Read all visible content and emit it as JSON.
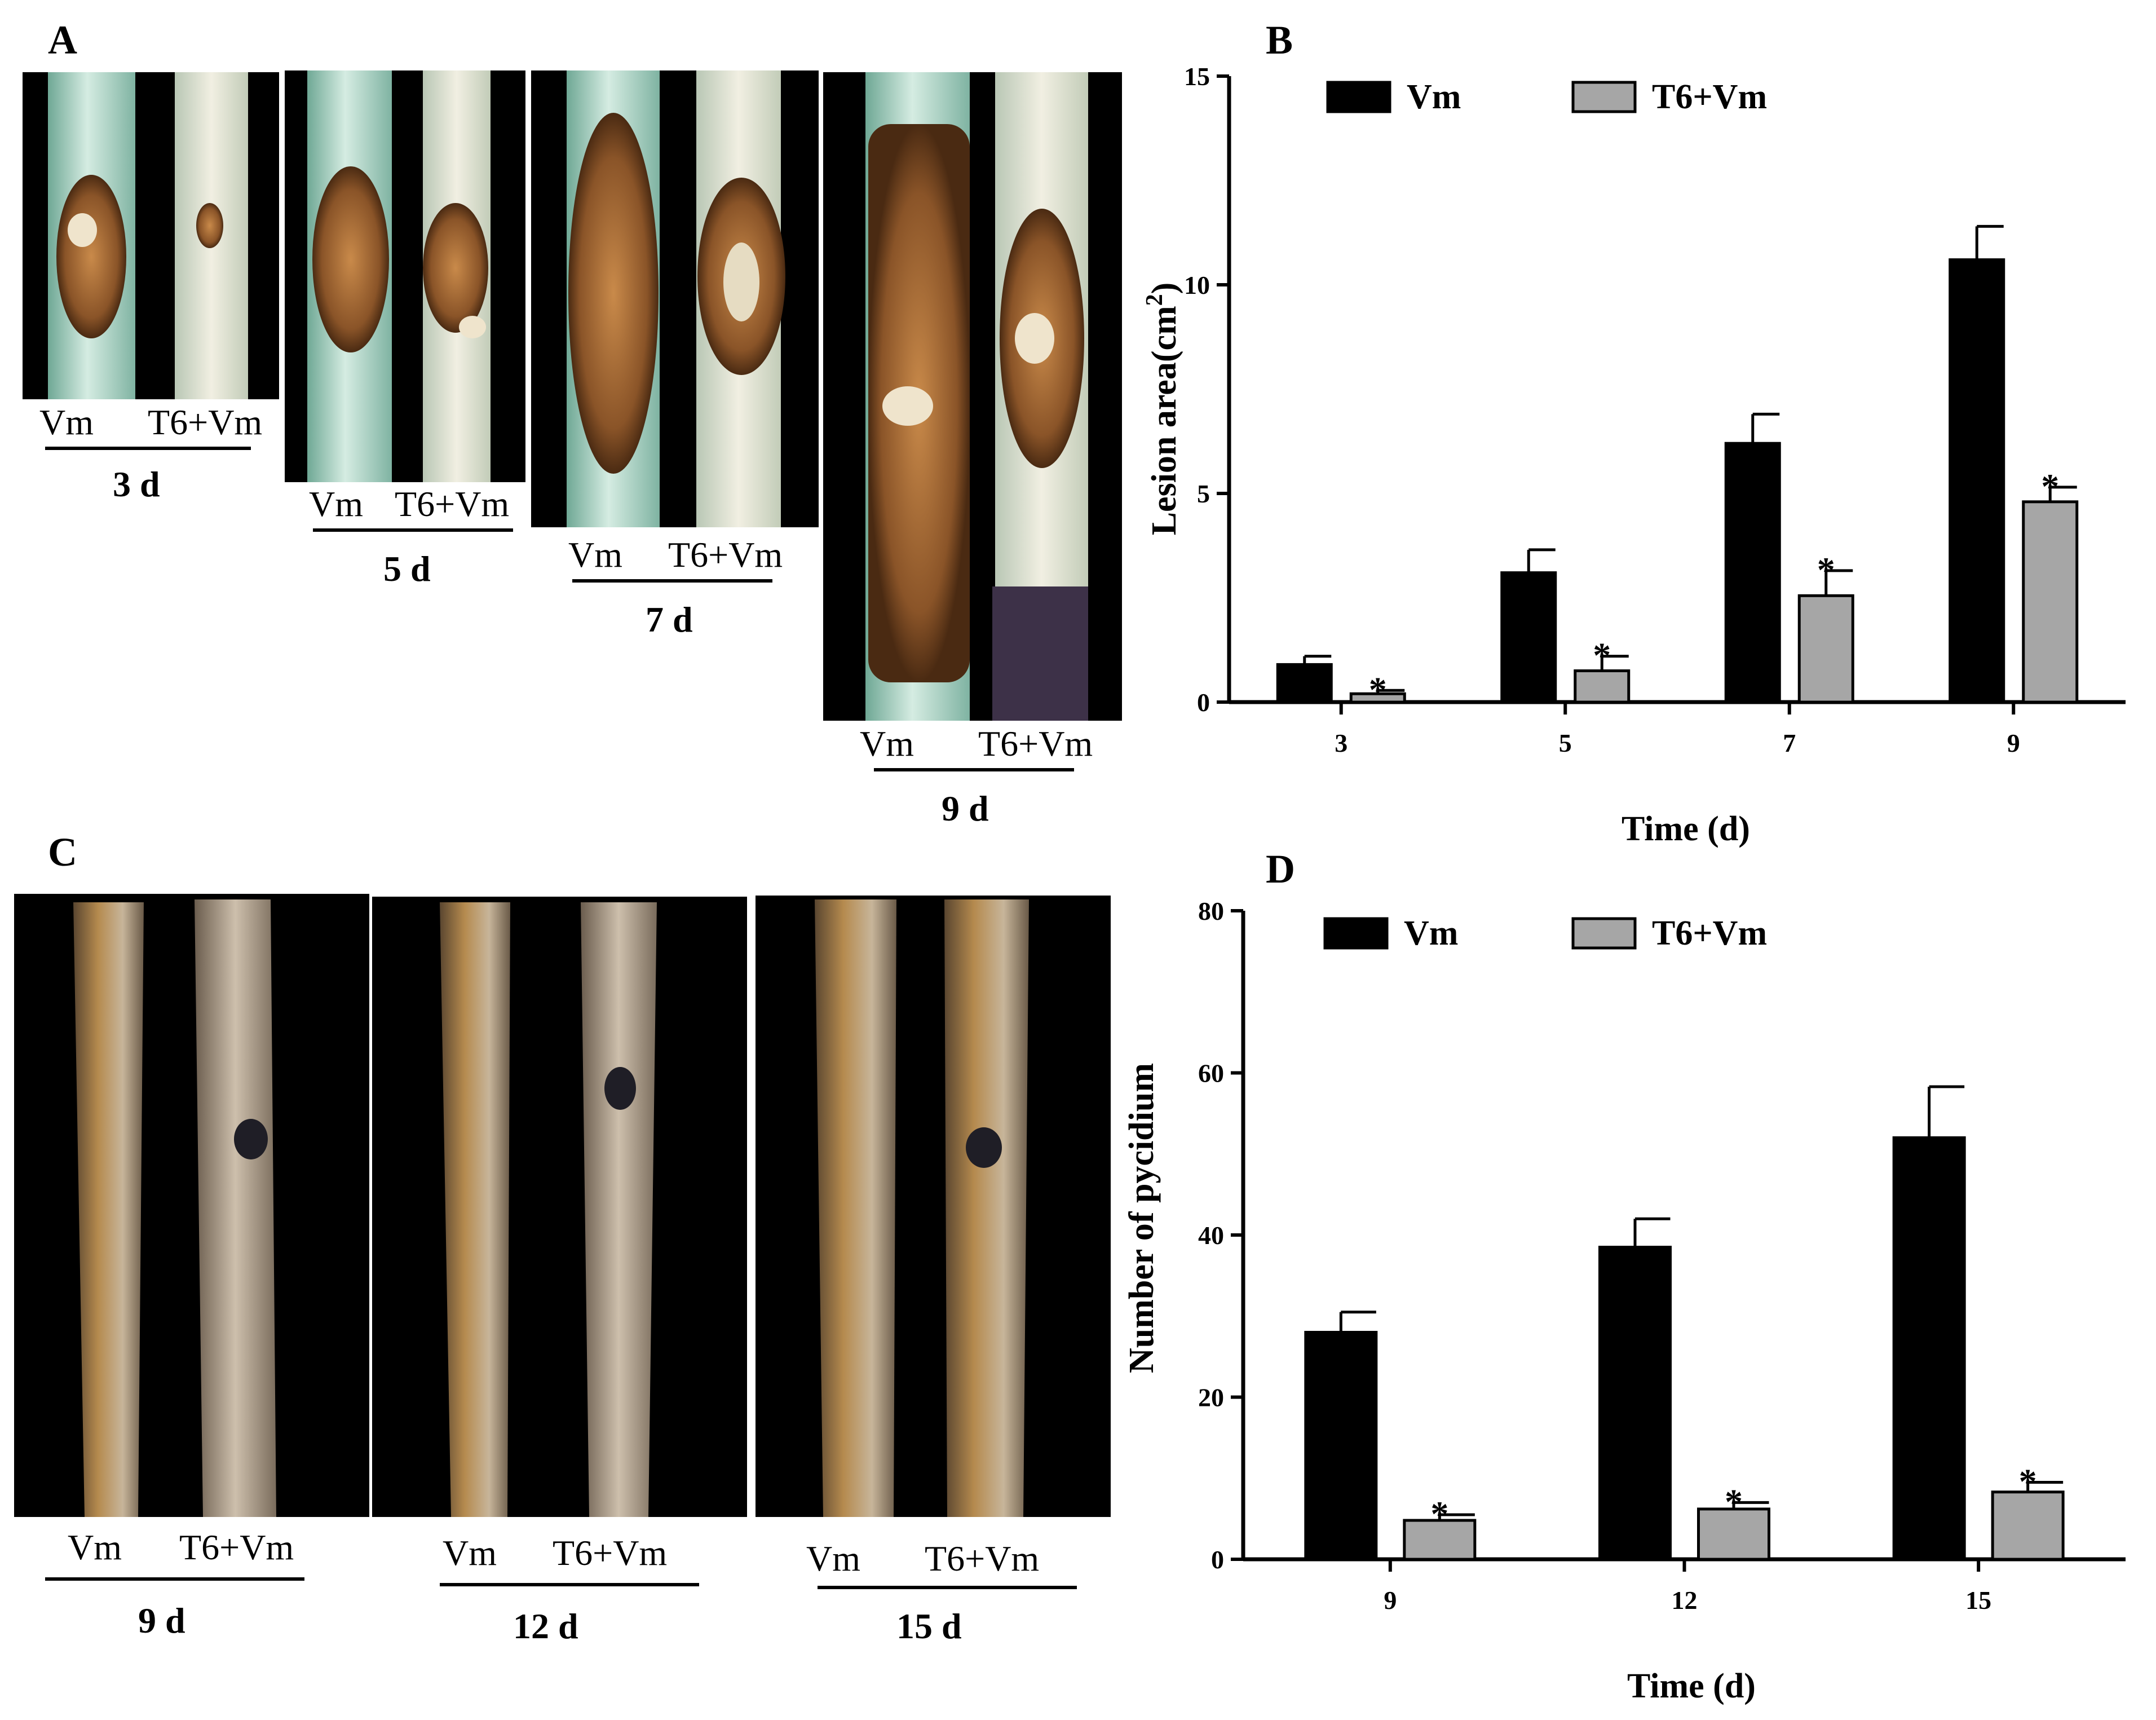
{
  "photo_panels": {
    "A": {
      "label": "A",
      "groups": [
        {
          "left": "Vm",
          "right": "T6+Vm",
          "day": "3 d"
        },
        {
          "left": "Vm",
          "right": "T6+Vm",
          "day": "5 d"
        },
        {
          "left": "Vm",
          "right": "T6+Vm",
          "day": "7 d"
        },
        {
          "left": "Vm",
          "right": "T6+Vm",
          "day": "9 d"
        }
      ]
    },
    "C": {
      "label": "C",
      "groups": [
        {
          "left": "Vm",
          "right": "T6+Vm",
          "day": "9 d"
        },
        {
          "left": "Vm",
          "right": "T6+Vm",
          "day": "12 d"
        },
        {
          "left": "Vm",
          "right": "T6+Vm",
          "day": "15 d"
        }
      ]
    }
  },
  "colors": {
    "vm": "#000000",
    "t6vm": "#a6a6a6",
    "photo_bg": "#000000",
    "bark_green": "#a9d3c4",
    "lesion": "#8a5a2b",
    "wood": "#8c6b45"
  },
  "chart_data": [
    {
      "panel_label": "B",
      "type": "bar",
      "title": "",
      "xlabel": "Time (d)",
      "ylabel": "Lesion area(cm",
      "ylabel_sup": "2",
      "ylabel_close": ")",
      "ylim": [
        0,
        15
      ],
      "yticks": [
        0,
        5,
        10,
        15
      ],
      "categories": [
        "3",
        "5",
        "7",
        "9"
      ],
      "legend_position": "top",
      "series": [
        {
          "name": "Vm",
          "values": [
            0.9,
            3.1,
            6.2,
            10.6
          ],
          "errors": [
            0.2,
            0.55,
            0.7,
            0.8
          ],
          "significance": [
            "",
            "",
            "",
            ""
          ]
        },
        {
          "name": "T6+Vm",
          "values": [
            0.2,
            0.75,
            2.55,
            4.8
          ],
          "errors": [
            0.08,
            0.35,
            0.6,
            0.35
          ],
          "significance": [
            "*",
            "*",
            "*",
            "*"
          ]
        }
      ]
    },
    {
      "panel_label": "D",
      "type": "bar",
      "title": "",
      "xlabel": "Time (d)",
      "ylabel": "Number of pycidium",
      "ylim": [
        0,
        80
      ],
      "yticks": [
        0,
        20,
        40,
        60,
        80
      ],
      "categories": [
        "9",
        "12",
        "15"
      ],
      "legend_position": "top",
      "series": [
        {
          "name": "Vm",
          "values": [
            28,
            38.5,
            52
          ],
          "errors": [
            2.5,
            3.5,
            6.3
          ],
          "significance": [
            "",
            "",
            ""
          ]
        },
        {
          "name": "T6+Vm",
          "values": [
            4.8,
            6.2,
            8.3
          ],
          "errors": [
            0.7,
            0.8,
            1.2
          ],
          "significance": [
            "*",
            "*",
            "*"
          ]
        }
      ]
    }
  ]
}
